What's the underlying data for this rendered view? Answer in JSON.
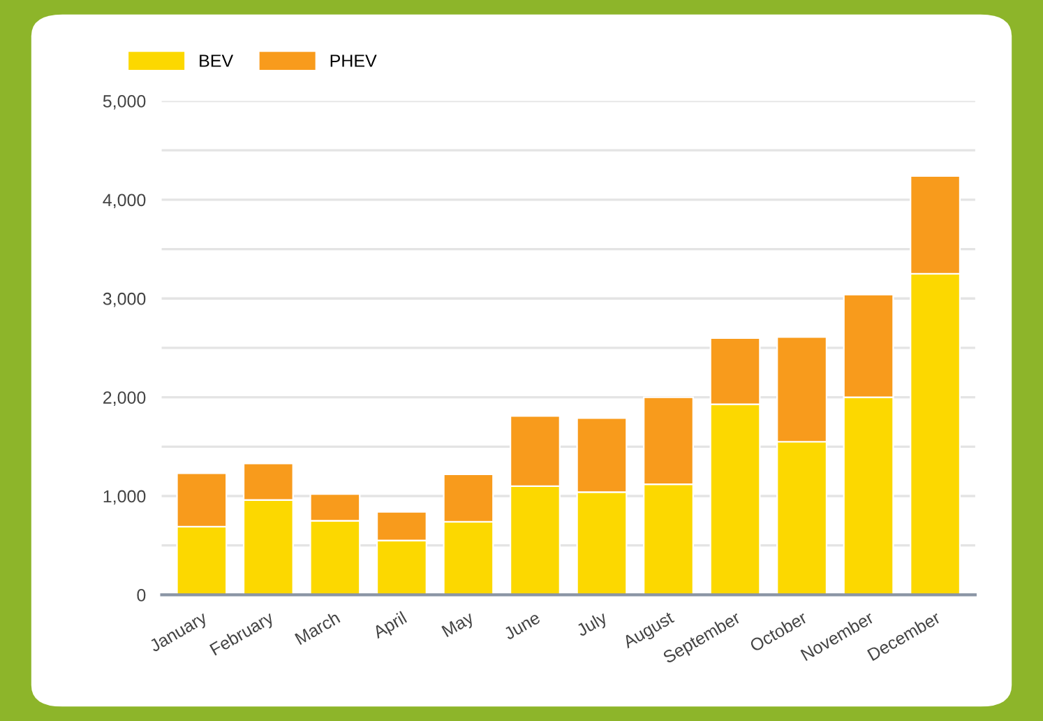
{
  "chart_data": {
    "type": "bar",
    "stacked": true,
    "categories": [
      "January",
      "February",
      "March",
      "April",
      "May",
      "June",
      "July",
      "August",
      "September",
      "October",
      "November",
      "December"
    ],
    "series": [
      {
        "name": "BEV",
        "color": "#fcd800",
        "values": [
          690,
          960,
          750,
          550,
          740,
          1100,
          1040,
          1120,
          1930,
          1550,
          2000,
          3250
        ]
      },
      {
        "name": "PHEV",
        "color": "#f89b1c",
        "values": [
          540,
          370,
          270,
          290,
          480,
          710,
          750,
          880,
          670,
          1060,
          1040,
          990
        ]
      }
    ],
    "ylim": [
      0,
      5000
    ],
    "yticks": [
      0,
      {
        "value": 500,
        "label": null
      },
      {
        "value": 1000,
        "label": "1,000"
      },
      {
        "value": 1500,
        "label": null
      },
      {
        "value": 2000,
        "label": "2,000"
      },
      {
        "value": 2500,
        "label": null
      },
      {
        "value": 3000,
        "label": "3,000"
      },
      {
        "value": 3500,
        "label": null
      },
      {
        "value": 4000,
        "label": "4,000"
      },
      {
        "value": 4500,
        "label": null
      },
      {
        "value": 5000,
        "label": "5,000"
      }
    ],
    "grid": "y",
    "legend": "top left"
  }
}
